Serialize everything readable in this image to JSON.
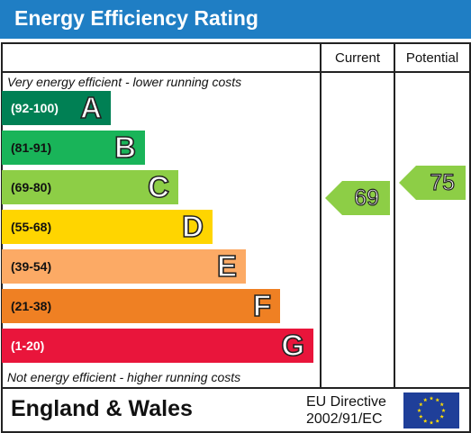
{
  "header": {
    "title": "Energy Efficiency Rating"
  },
  "columns": {
    "current": "Current",
    "potential": "Potential"
  },
  "notes": {
    "top": "Very energy efficient - lower running costs",
    "bottom": "Not energy efficient - higher running costs"
  },
  "chart_data": {
    "type": "bar",
    "title": "Energy Efficiency Rating",
    "categories": [
      "A",
      "B",
      "C",
      "D",
      "E",
      "F",
      "G"
    ],
    "bands": [
      {
        "letter": "A",
        "range": "(92-100)",
        "color": "#008054"
      },
      {
        "letter": "B",
        "range": "(81-91)",
        "color": "#19b459"
      },
      {
        "letter": "C",
        "range": "(69-80)",
        "color": "#8dce46"
      },
      {
        "letter": "D",
        "range": "(55-68)",
        "color": "#ffd500"
      },
      {
        "letter": "E",
        "range": "(39-54)",
        "color": "#fcaa65"
      },
      {
        "letter": "F",
        "range": "(21-38)",
        "color": "#ef8023"
      },
      {
        "letter": "G",
        "range": "(1-20)",
        "color": "#e9153b"
      }
    ],
    "current": {
      "value": 69,
      "label": "69",
      "band": "C",
      "color": "#8dce46"
    },
    "potential": {
      "value": 75,
      "label": "75",
      "band": "C",
      "color": "#8dce46"
    }
  },
  "footer": {
    "region": "England & Wales",
    "directive_line1": "EU Directive",
    "directive_line2": "2002/91/EC"
  },
  "flag": {
    "name": "eu-flag",
    "background": "#1f3f99",
    "star_color": "#ffdd00"
  }
}
